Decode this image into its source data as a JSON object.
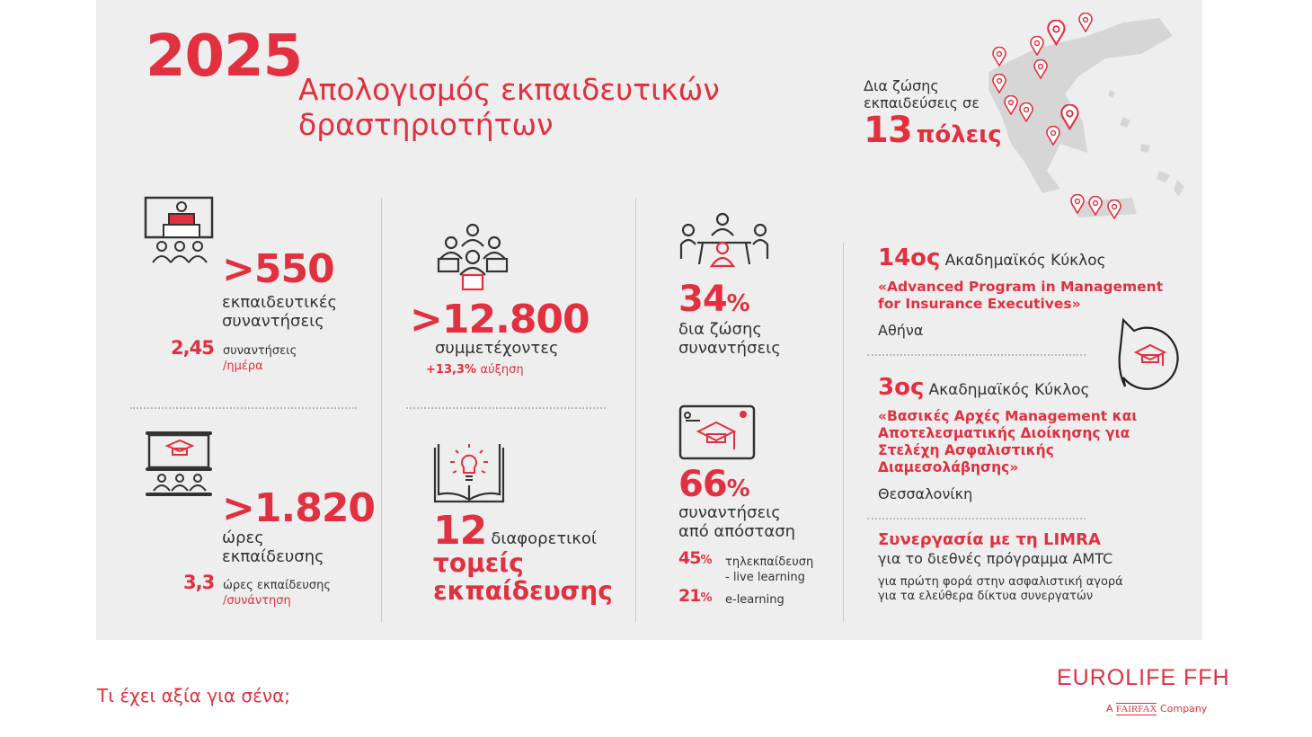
{
  "header": {
    "year": "2025",
    "title_line1": "Απολογισμός εκπαιδευτικών",
    "title_line2": "δραστηριοτήτων"
  },
  "map": {
    "line1": "Δια ζώσης",
    "line2": "εκπαιδεύσεις σε",
    "number": "13",
    "unit": "πόλεις",
    "pin_count": 13
  },
  "stats": {
    "meetings": {
      "value": ">550",
      "line1": "εκπαιδευτικές",
      "line2": "συναντήσεις",
      "sub_value": "2,45",
      "sub_label": "συναντήσεις",
      "sub_unit": "/ημέρα"
    },
    "hours": {
      "value": ">1.820",
      "line1": "ώρες",
      "line2": "εκπαίδευσης",
      "sub_value": "3,3",
      "sub_label": "ώρες εκπαίδευσης",
      "sub_unit": "/συνάντηση"
    },
    "participants": {
      "value": ">12.800",
      "label": "συμμετέχοντες",
      "growth": "+13,3%",
      "growth_label": "αύξηση"
    },
    "sectors": {
      "value": "12",
      "label": "διαφορετικοί",
      "line1": "τομείς",
      "line2": "εκπαίδευσης"
    },
    "live": {
      "value": "34",
      "pct": "%",
      "line1": "δια ζώσης",
      "line2": "συναντήσεις"
    },
    "remote": {
      "value": "66",
      "pct": "%",
      "line1": "συναντήσεις",
      "line2": "από απόσταση",
      "breakdown": [
        {
          "value": "45",
          "pct": "%",
          "line1": "τηλεκπαίδευση",
          "line2": "- live learning"
        },
        {
          "value": "21",
          "pct": "%",
          "line1": "e-learning",
          "line2": ""
        }
      ]
    }
  },
  "programs": [
    {
      "ordinal": "14ος",
      "label": "Ακαδημαϊκός Κύκλος",
      "title": "«Advanced Program in Management for Insurance Executives»",
      "city": "Αθήνα"
    },
    {
      "ordinal": "3ος",
      "label": "Ακαδημαϊκός Κύκλος",
      "title": "«Βασικές Αρχές Management και Αποτελεσματικής Διοίκησης για Στελέχη Ασφαλιστικής Διαμεσολάβησης»",
      "city": "Θεσσαλονίκη"
    }
  ],
  "limra": {
    "title": "Συνεργασία με τη LIMRA",
    "subtitle": "για το διεθνές πρόγραμμα AMTC",
    "note": "για πρώτη φορά στην ασφαλιστική αγορά για τα ελεύθερα δίκτυα συνεργατών"
  },
  "footer": {
    "tagline": "Τι έχει αξία για σένα;",
    "logo": "EUROLIFE FFH",
    "logo_sub_a": "A",
    "logo_sub_brand": "FAIRFAX",
    "logo_sub_company": "Company"
  },
  "colors": {
    "accent": "#e1303f",
    "panel": "#eeeeee",
    "text": "#333333"
  }
}
